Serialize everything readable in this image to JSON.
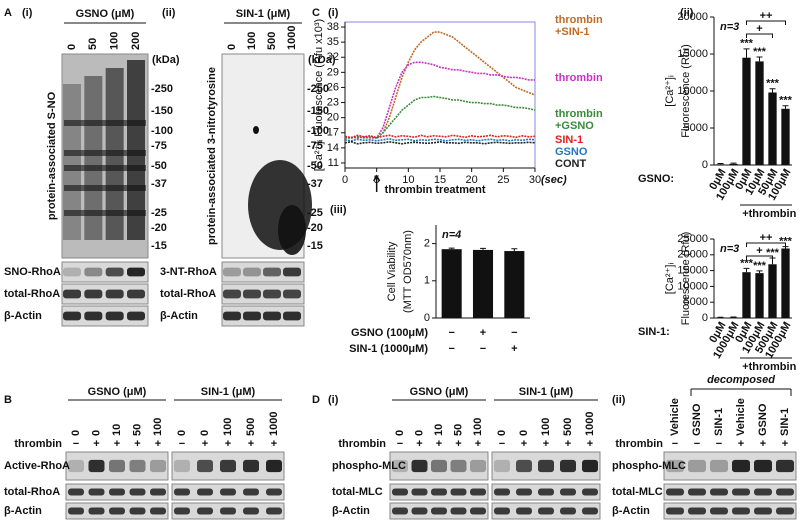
{
  "chart_data": [
    {
      "type": "line",
      "ylabel": "[Ca²⁺]ᵢ Fluorescence (Rfu x10³)",
      "xlabel": "(sec)",
      "annotation": "thrombin treatment",
      "x": [
        0,
        1,
        2,
        3,
        4,
        5,
        6,
        7,
        8,
        9,
        10,
        11,
        12,
        13,
        14,
        15,
        16,
        17,
        18,
        19,
        20,
        21,
        22,
        23,
        24,
        25,
        26,
        27,
        28,
        29,
        30
      ],
      "xlim": [
        0,
        30
      ],
      "xticks": [
        0,
        5,
        10,
        15,
        20,
        25,
        30
      ],
      "ylim": [
        10,
        39
      ],
      "yticks": [
        11,
        14,
        17,
        20,
        23,
        26,
        29,
        32,
        35,
        38
      ],
      "series": [
        {
          "name": "thrombin +SIN-1",
          "color": "#c06a25",
          "values": [
            16,
            16,
            16.2,
            16,
            16.1,
            16,
            17,
            20,
            24,
            28,
            31,
            33.5,
            35,
            36,
            37,
            37,
            36.5,
            36,
            35,
            34,
            33,
            32,
            31,
            30,
            29,
            28,
            27,
            26,
            25.5,
            25,
            24.5
          ]
        },
        {
          "name": "thrombin",
          "color": "#c832c8",
          "values": [
            16,
            16.1,
            16,
            16.2,
            16,
            16,
            18,
            22,
            26,
            29,
            30.5,
            31,
            31,
            30.8,
            30.5,
            30,
            29.8,
            29.5,
            29.5,
            29.2,
            29,
            28.8,
            28.8,
            28.5,
            28.5,
            28.2,
            28,
            28,
            27.8,
            27.5,
            27.5
          ]
        },
        {
          "name": "thrombin +GSNO",
          "color": "#3a8a3a",
          "values": [
            16,
            16,
            16.2,
            16,
            16.1,
            16,
            17,
            18.5,
            20,
            21.5,
            22.5,
            23.5,
            24,
            24,
            24.2,
            24,
            23.8,
            23.5,
            23.5,
            23.2,
            23,
            23,
            22.8,
            22.8,
            22.5,
            22.5,
            22.3,
            22,
            22,
            21.8,
            21.5
          ]
        },
        {
          "name": "SIN-1",
          "color": "#e02020",
          "values": [
            16.3,
            16,
            16.5,
            16.2,
            16.4,
            16,
            16.3,
            16.5,
            16.2,
            16.4,
            16.3,
            16.1,
            16.5,
            16.2,
            16.4,
            16.3,
            16.2,
            16.5,
            16.3,
            16.1,
            16.4,
            16.2,
            16.3,
            16.5,
            16.2,
            16.4,
            16.3,
            16.1,
            16.4,
            16.2,
            16.3
          ]
        },
        {
          "name": "GSNO",
          "color": "#1f77c4",
          "values": [
            15.6,
            15.4,
            15.7,
            15.5,
            15.6,
            15.4,
            15.6,
            15.8,
            15.5,
            15.6,
            15.7,
            15.4,
            15.6,
            15.5,
            15.7,
            15.6,
            15.4,
            15.6,
            15.7,
            15.5,
            15.6,
            15.4,
            15.6,
            15.7,
            15.5,
            15.6,
            15.4,
            15.6,
            15.5,
            15.7,
            15.6
          ]
        },
        {
          "name": "CONT",
          "color": "#222222",
          "values": [
            15,
            15.2,
            14.8,
            15,
            15.1,
            14.9,
            15,
            15.2,
            15,
            14.8,
            15,
            15.1,
            15,
            14.9,
            15,
            15.2,
            15,
            15,
            14.9,
            15.1,
            15,
            15,
            14.8,
            15,
            15.1,
            15,
            14.9,
            15,
            15,
            15.1,
            15
          ]
        }
      ]
    },
    {
      "type": "bar",
      "n": "n=3",
      "ylabel": [
        "[Ca²⁺]ᵢ",
        "Fluorescence (Rfu)"
      ],
      "categories": [
        "0μM",
        "100μM",
        "0μM",
        "10μM",
        "50μM",
        "100μM"
      ],
      "values": [
        100,
        150,
        14500,
        14000,
        9800,
        7600
      ],
      "errors": [
        100,
        100,
        1200,
        600,
        500,
        400
      ],
      "stars": [
        null,
        null,
        "***",
        "***",
        "***",
        "***"
      ],
      "significance": [
        "++",
        "+"
      ],
      "group_label": "GSNO:",
      "bracket_label": "+thrombin",
      "color": "#111111",
      "ylim": [
        0,
        20000
      ],
      "yticks": [
        0,
        5000,
        10000,
        15000,
        20000
      ]
    },
    {
      "type": "bar",
      "n": "n=3",
      "ylabel": [
        "[Ca²⁺]ᵢ",
        "Fluorescence (Rfu)"
      ],
      "categories": [
        "0μM",
        "1000μM",
        "0μM",
        "100μM",
        "500μM",
        "1000μM"
      ],
      "values": [
        150,
        200,
        14500,
        14200,
        17000,
        22000
      ],
      "errors": [
        100,
        100,
        1200,
        700,
        2000,
        600
      ],
      "stars": [
        null,
        null,
        "***",
        "***",
        "***",
        "***"
      ],
      "significance": [
        "++",
        "+"
      ],
      "group_label": "SIN-1:",
      "bracket_label": "+thrombin",
      "color": "#111111",
      "ylim": [
        0,
        25000
      ],
      "yticks": [
        0,
        5000,
        10000,
        15000,
        20000,
        25000
      ]
    },
    {
      "type": "bar",
      "n": "n=4",
      "ylabel": [
        "Cell Viability",
        "(MTT OD570nm)"
      ],
      "values": [
        1.85,
        1.83,
        1.8
      ],
      "errors": [
        0.03,
        0.04,
        0.06
      ],
      "color": "#111111",
      "conditions": [
        {
          "label": "GSNO (100μM)",
          "signs": [
            "−",
            "+",
            "−"
          ]
        },
        {
          "label": "SIN-1 (1000μM)",
          "signs": [
            "−",
            "−",
            "+"
          ]
        }
      ],
      "ylim": [
        0,
        2.5
      ],
      "yticks": [
        0,
        1,
        2
      ]
    }
  ],
  "panels": {
    "A": {
      "letter": "A",
      "i": {
        "tag": "(i)",
        "treatment": "GSNO (μM)",
        "lanes": [
          "0",
          "50",
          "100",
          "200"
        ],
        "kda": "(kDa)",
        "markers": [
          "-250",
          "-150",
          "-100",
          "-75",
          "-50",
          "-37",
          "-25",
          "-20",
          "-15"
        ],
        "ylabel": "protein-associated S-NO",
        "rows": [
          "SNO-RhoA",
          "total-RhoA",
          "β-Actin"
        ]
      },
      "ii": {
        "tag": "(ii)",
        "treatment": "SIN-1 (μM)",
        "lanes": [
          "0",
          "100",
          "500",
          "1000"
        ],
        "kda": "(kDa)",
        "markers": [
          "-250",
          "-150",
          "-100",
          "-75",
          "-50",
          "-37",
          "-25",
          "-20",
          "-15"
        ],
        "ylabel": "protein-associated 3-nitrotyrosine",
        "rows": [
          "3-NT-RhoA",
          "total-RhoA",
          "β-Actin"
        ]
      }
    },
    "B": {
      "letter": "B",
      "thrombin_label": "thrombin",
      "rows": [
        "Active-RhoA",
        "total-RhoA",
        "β-Actin"
      ],
      "groups": [
        {
          "treatment": "GSNO (μM)",
          "lanes": [
            "0",
            "0",
            "10",
            "50",
            "100"
          ],
          "thrombin": [
            "−",
            "+",
            "+",
            "+",
            "+"
          ]
        },
        {
          "treatment": "SIN-1 (μM)",
          "lanes": [
            "0",
            "0",
            "100",
            "500",
            "1000"
          ],
          "thrombin": [
            "−",
            "+",
            "+",
            "+",
            "+"
          ]
        }
      ]
    },
    "C": {
      "letter": "C",
      "i": "(i)",
      "ii": "(ii)",
      "iii": "(iii)"
    },
    "D": {
      "letter": "D",
      "i": {
        "tag": "(i)",
        "thrombin_label": "thrombin",
        "rows": [
          "phospho-MLC",
          "total-MLC",
          "β-Actin"
        ],
        "groups": [
          {
            "treatment": "GSNO (μM)",
            "lanes": [
              "0",
              "0",
              "10",
              "50",
              "100"
            ],
            "thrombin": [
              "−",
              "+",
              "+",
              "+",
              "+"
            ]
          },
          {
            "treatment": "SIN-1 (μM)",
            "lanes": [
              "0",
              "0",
              "100",
              "500",
              "1000"
            ],
            "thrombin": [
              "−",
              "+",
              "+",
              "+",
              "+"
            ]
          }
        ]
      },
      "ii": {
        "tag": "(ii)",
        "bracket": "decomposed",
        "thrombin_label": "thrombin",
        "rows": [
          "phospho-MLC",
          "total-MLC",
          "β-Actin"
        ],
        "lanes": [
          "Vehicle",
          "GSNO",
          "SIN-1",
          "Vehicle",
          "GSNO",
          "SIN-1"
        ],
        "thrombin": [
          "−",
          "−",
          "−",
          "+",
          "+",
          "+"
        ]
      }
    }
  }
}
